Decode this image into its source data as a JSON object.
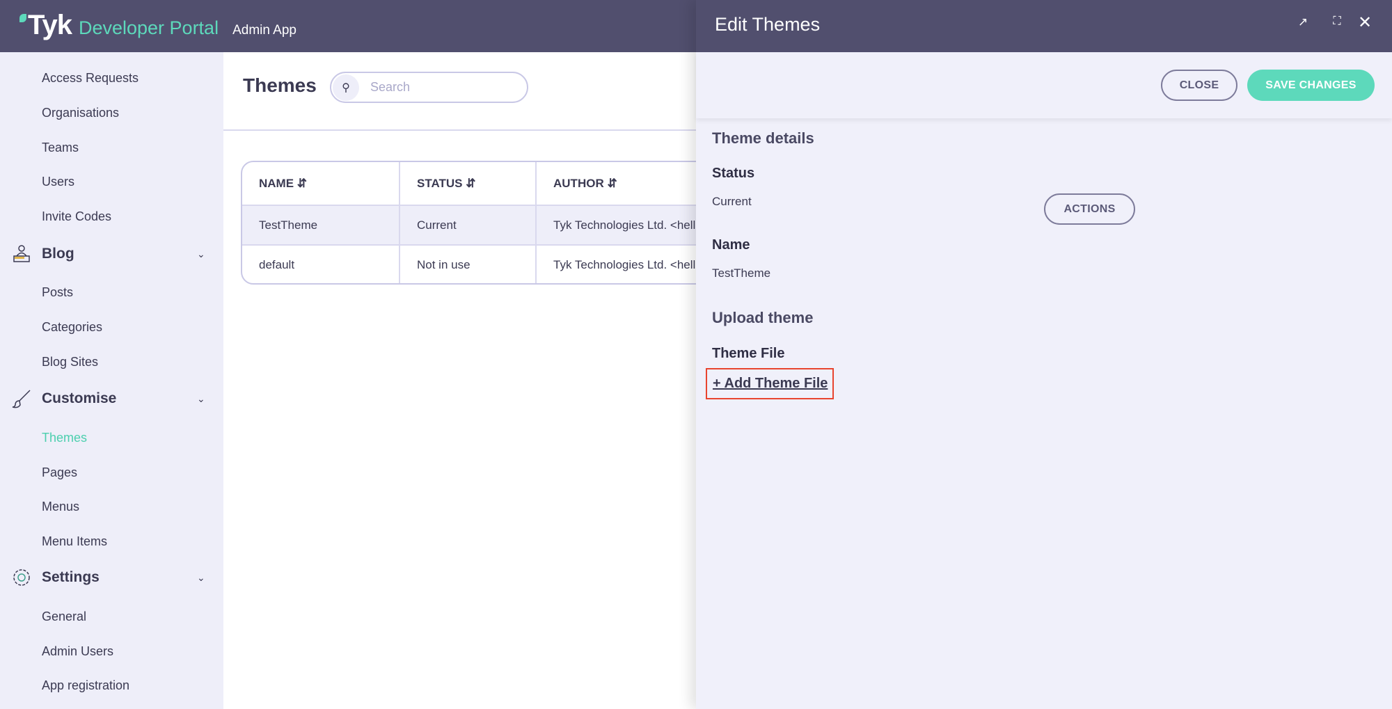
{
  "topbar": {
    "logo": "Tyk",
    "product": "Developer Portal",
    "app": "Admin App"
  },
  "sidebar": {
    "items_top": [
      "Access Requests",
      "Organisations",
      "Teams",
      "Users",
      "Invite Codes"
    ],
    "groups": [
      {
        "label": "Blog",
        "icon": "blog-icon",
        "items": [
          "Posts",
          "Categories",
          "Blog Sites"
        ]
      },
      {
        "label": "Customise",
        "icon": "brush-icon",
        "items": [
          "Themes",
          "Pages",
          "Menus",
          "Menu Items"
        ]
      },
      {
        "label": "Settings",
        "icon": "gear-icon",
        "items": [
          "General",
          "Admin Users",
          "App registration"
        ]
      }
    ],
    "active": "Themes"
  },
  "main": {
    "title": "Themes",
    "search": {
      "placeholder": "Search"
    },
    "table": {
      "columns": [
        "NAME",
        "STATUS",
        "AUTHOR"
      ],
      "rows": [
        [
          "TestTheme",
          "Current",
          "Tyk Technologies Ltd. <hello"
        ],
        [
          "default",
          "Not in use",
          "Tyk Technologies Ltd. <hello"
        ]
      ]
    }
  },
  "panel": {
    "title": "Edit Themes",
    "close_label": "CLOSE",
    "save_label": "SAVE CHANGES",
    "section1": "Theme details",
    "status_label": "Status",
    "status_value": "Current",
    "actions_label": "ACTIONS",
    "name_label": "Name",
    "name_value": "TestTheme",
    "section2": "Upload theme",
    "file_label": "Theme File",
    "add_file": "+ Add Theme File"
  },
  "colors": {
    "header": "#514f6e",
    "accent": "#5dd9bb",
    "sidebar_bg": "#eeeef9",
    "highlight": "#e8442e"
  }
}
